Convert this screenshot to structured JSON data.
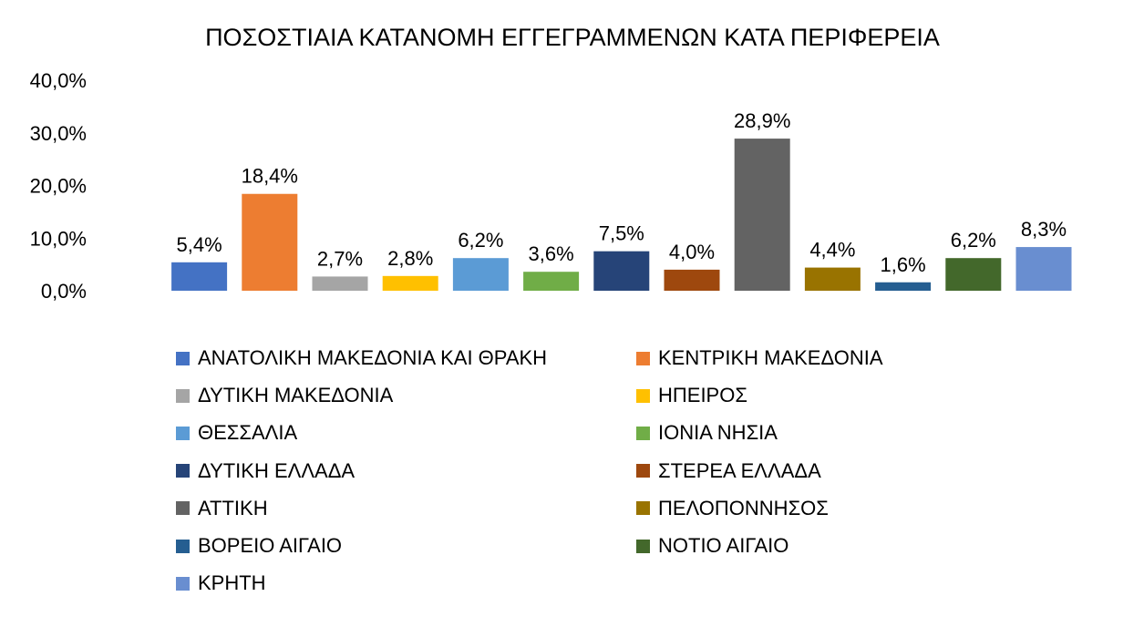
{
  "chart_data": {
    "type": "bar",
    "title": "ΠΟΣΟΣΤΙΑΙΑ ΚΑΤΑΝΟΜΗ ΕΓΓΕΓΡΑΜΜΕΝΩΝ ΚΑΤΑ ΠΕΡΙΦΕΡΕΙΑ",
    "xlabel": "",
    "ylabel": "",
    "ylim": [
      0,
      40
    ],
    "yticks": [
      "0,0%",
      "10,0%",
      "20,0%",
      "30,0%",
      "40,0%"
    ],
    "grid": false,
    "legend_position": "bottom",
    "categories": [
      "ΑΝΑΤΟΛΙΚΗ ΜΑΚΕΔΟΝΙΑ ΚΑΙ ΘΡΑΚΗ",
      "ΚΕΝΤΡΙΚΗ ΜΑΚΕΔΟΝΙΑ",
      "ΔΥΤΙΚΗ ΜΑΚΕΔΟΝΙΑ",
      "ΗΠΕΙΡΟΣ",
      "ΘΕΣΣΑΛΙΑ",
      "ΙΟΝΙΑ ΝΗΣΙΑ",
      "ΔΥΤΙΚΗ ΕΛΛΑΔΑ",
      "ΣΤΕΡΕΑ ΕΛΛΑΔΑ",
      "ΑΤΤΙΚΗ",
      "ΠΕΛΟΠΟΝΝΗΣΟΣ",
      "ΒΟΡΕΙΟ ΑΙΓΑΙΟ",
      "ΝΟΤΙΟ ΑΙΓΑΙΟ",
      "ΚΡΗΤΗ"
    ],
    "values": [
      5.4,
      18.4,
      2.7,
      2.8,
      6.2,
      3.6,
      7.5,
      4.0,
      28.9,
      4.4,
      1.6,
      6.2,
      8.3
    ],
    "data_labels": [
      "5,4%",
      "18,4%",
      "2,7%",
      "2,8%",
      "6,2%",
      "3,6%",
      "7,5%",
      "4,0%",
      "28,9%",
      "4,4%",
      "1,6%",
      "6,2%",
      "8,3%"
    ],
    "colors": [
      "#4472C4",
      "#ED7D31",
      "#A5A5A5",
      "#FFC000",
      "#5B9BD5",
      "#70AD47",
      "#264478",
      "#9E480E",
      "#636363",
      "#997300",
      "#255E91",
      "#43682B",
      "#698ED0"
    ]
  }
}
